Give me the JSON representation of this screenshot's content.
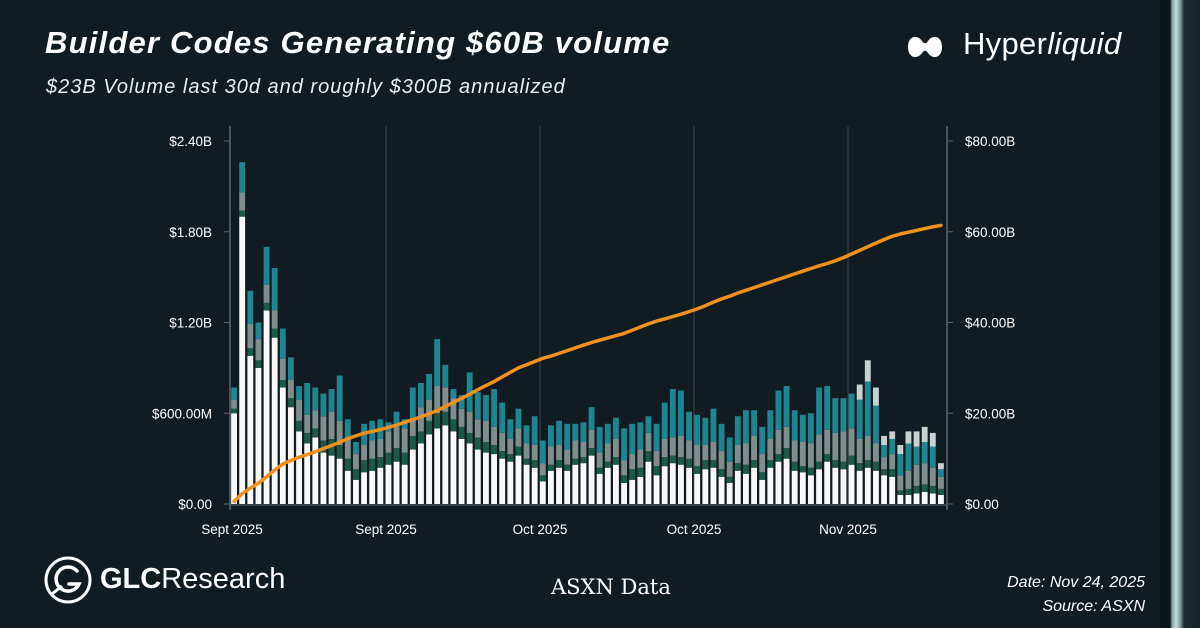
{
  "header": {
    "title": "Builder Codes Generating $60B volume",
    "subtitle": "$23B Volume last 30d and roughly $300B annualized"
  },
  "brand": {
    "hyperliquid_prefix": "Hyper",
    "hyperliquid_suffix": "liquid",
    "glc_bold": "GLC",
    "glc_rest": "Research"
  },
  "footer": {
    "center_source": "ASXN Data",
    "date": "Date: Nov 24, 2025",
    "source": "Source: ASXN"
  },
  "chart_data": {
    "type": "bar",
    "stacked": true,
    "x_tick_labels": [
      "Sept 2025",
      "Sept 2025",
      "Oct 2025",
      "Oct 2025",
      "Nov 2025"
    ],
    "y_left": {
      "ticks": [
        "$0.00",
        "$600.00M",
        "$1.20B",
        "$1.80B",
        "$2.40B"
      ],
      "ylim": [
        0,
        2.4
      ],
      "unit": "B"
    },
    "y_right": {
      "ticks": [
        "$0.00",
        "$20.00B",
        "$40.00B",
        "$60.00B",
        "$80.00B"
      ],
      "ylim": [
        0,
        80
      ],
      "unit": "B"
    },
    "grid": "vertical",
    "colors": {
      "white": "#f8f8f8",
      "darkgreen": "#1b5a47",
      "gray": "#7d8e8c",
      "teal": "#1f8591",
      "lightgray": "#c9d0d0",
      "line": "#f2901e",
      "axis": "#5b666a"
    },
    "series": [
      {
        "name": "white",
        "values": [
          0.6,
          1.9,
          0.98,
          0.9,
          1.28,
          1.1,
          0.77,
          0.64,
          0.48,
          0.4,
          0.44,
          0.34,
          0.32,
          0.3,
          0.22,
          0.16,
          0.21,
          0.22,
          0.24,
          0.26,
          0.28,
          0.26,
          0.36,
          0.4,
          0.46,
          0.5,
          0.52,
          0.48,
          0.43,
          0.4,
          0.36,
          0.34,
          0.33,
          0.3,
          0.28,
          0.32,
          0.26,
          0.24,
          0.15,
          0.22,
          0.24,
          0.22,
          0.26,
          0.27,
          0.32,
          0.2,
          0.24,
          0.26,
          0.14,
          0.16,
          0.18,
          0.28,
          0.19,
          0.25,
          0.27,
          0.26,
          0.24,
          0.2,
          0.23,
          0.24,
          0.18,
          0.14,
          0.22,
          0.2,
          0.24,
          0.16,
          0.24,
          0.28,
          0.3,
          0.22,
          0.21,
          0.19,
          0.23,
          0.28,
          0.24,
          0.23,
          0.26,
          0.22,
          0.24,
          0.22,
          0.19,
          0.18,
          0.06,
          0.06,
          0.07,
          0.08,
          0.07,
          0.06
        ]
      },
      {
        "name": "darkgreen",
        "values": [
          0.03,
          0.04,
          0.05,
          0.05,
          0.05,
          0.06,
          0.05,
          0.06,
          0.07,
          0.07,
          0.06,
          0.08,
          0.11,
          0.09,
          0.08,
          0.07,
          0.08,
          0.08,
          0.07,
          0.08,
          0.09,
          0.08,
          0.09,
          0.08,
          0.09,
          0.1,
          0.09,
          0.08,
          0.08,
          0.07,
          0.08,
          0.07,
          0.06,
          0.05,
          0.05,
          0.06,
          0.04,
          0.05,
          0.04,
          0.04,
          0.05,
          0.04,
          0.04,
          0.04,
          0.05,
          0.04,
          0.04,
          0.05,
          0.05,
          0.07,
          0.06,
          0.07,
          0.06,
          0.06,
          0.05,
          0.05,
          0.06,
          0.05,
          0.06,
          0.05,
          0.05,
          0.04,
          0.05,
          0.06,
          0.05,
          0.05,
          0.05,
          0.05,
          0.07,
          0.06,
          0.04,
          0.05,
          0.05,
          0.05,
          0.05,
          0.05,
          0.06,
          0.05,
          0.05,
          0.06,
          0.04,
          0.05,
          0.03,
          0.04,
          0.05,
          0.05,
          0.05,
          0.04
        ]
      },
      {
        "name": "gray",
        "values": [
          0.06,
          0.12,
          0.16,
          0.14,
          0.12,
          0.12,
          0.14,
          0.12,
          0.14,
          0.12,
          0.12,
          0.16,
          0.18,
          0.16,
          0.14,
          0.1,
          0.1,
          0.12,
          0.12,
          0.14,
          0.14,
          0.16,
          0.12,
          0.16,
          0.14,
          0.18,
          0.16,
          0.14,
          0.12,
          0.14,
          0.12,
          0.14,
          0.12,
          0.12,
          0.1,
          0.12,
          0.1,
          0.1,
          0.08,
          0.12,
          0.1,
          0.1,
          0.12,
          0.1,
          0.12,
          0.1,
          0.12,
          0.12,
          0.1,
          0.1,
          0.12,
          0.12,
          0.1,
          0.12,
          0.12,
          0.14,
          0.12,
          0.14,
          0.1,
          0.12,
          0.12,
          0.1,
          0.12,
          0.14,
          0.16,
          0.12,
          0.14,
          0.16,
          0.14,
          0.14,
          0.16,
          0.16,
          0.18,
          0.16,
          0.18,
          0.2,
          0.18,
          0.16,
          0.16,
          0.12,
          0.08,
          0.1,
          0.1,
          0.12,
          0.14,
          0.14,
          0.12,
          0.08
        ]
      },
      {
        "name": "teal",
        "values": [
          0.08,
          0.2,
          0.22,
          0.11,
          0.25,
          0.28,
          0.2,
          0.15,
          0.09,
          0.21,
          0.15,
          0.15,
          0.15,
          0.3,
          0.12,
          0.08,
          0.14,
          0.13,
          0.13,
          0.06,
          0.1,
          0.06,
          0.2,
          0.16,
          0.17,
          0.31,
          0.15,
          0.06,
          0.09,
          0.26,
          0.18,
          0.17,
          0.25,
          0.2,
          0.13,
          0.13,
          0.12,
          0.19,
          0.15,
          0.14,
          0.16,
          0.17,
          0.11,
          0.13,
          0.15,
          0.17,
          0.13,
          0.14,
          0.21,
          0.2,
          0.18,
          0.11,
          0.18,
          0.24,
          0.32,
          0.3,
          0.19,
          0.2,
          0.18,
          0.22,
          0.18,
          0.16,
          0.19,
          0.22,
          0.17,
          0.18,
          0.19,
          0.26,
          0.27,
          0.2,
          0.18,
          0.2,
          0.31,
          0.29,
          0.23,
          0.22,
          0.23,
          0.26,
          0.36,
          0.25,
          0.08,
          0.1,
          0.14,
          0.18,
          0.12,
          0.14,
          0.14,
          0.05
        ]
      },
      {
        "name": "lightgray",
        "values": [
          0,
          0,
          0,
          0,
          0,
          0,
          0,
          0,
          0,
          0,
          0,
          0,
          0,
          0,
          0,
          0,
          0,
          0,
          0,
          0,
          0,
          0,
          0,
          0,
          0,
          0,
          0,
          0,
          0,
          0,
          0,
          0,
          0,
          0,
          0,
          0,
          0,
          0,
          0,
          0,
          0,
          0,
          0,
          0,
          0,
          0,
          0,
          0,
          0,
          0,
          0,
          0,
          0,
          0,
          0,
          0,
          0,
          0,
          0,
          0,
          0,
          0,
          0,
          0,
          0,
          0,
          0,
          0,
          0,
          0,
          0,
          0,
          0,
          0,
          0,
          0,
          0,
          0.1,
          0.14,
          0.12,
          0.06,
          0.05,
          0.06,
          0.08,
          0.1,
          0.1,
          0.09,
          0.04
        ]
      }
    ],
    "cumulative_line_B": [
      0.6,
      2.3,
      3.5,
      4.6,
      6.0,
      7.5,
      8.8,
      9.6,
      10.3,
      10.9,
      11.5,
      12.2,
      12.9,
      13.6,
      14.4,
      15.0,
      15.6,
      16.0,
      16.4,
      16.9,
      17.4,
      18.0,
      18.6,
      19.2,
      19.9,
      20.6,
      21.5,
      22.4,
      23.3,
      24.2,
      25.2,
      26.1,
      27.0,
      28.0,
      29.0,
      30.0,
      30.7,
      31.4,
      32.1,
      32.6,
      33.2,
      33.8,
      34.4,
      35.0,
      35.6,
      36.1,
      36.6,
      37.1,
      37.6,
      38.3,
      39.0,
      39.7,
      40.3,
      40.8,
      41.3,
      41.8,
      42.4,
      43.0,
      43.7,
      44.5,
      45.2,
      45.8,
      46.5,
      47.1,
      47.7,
      48.3,
      48.9,
      49.5,
      50.1,
      50.7,
      51.3,
      51.9,
      52.5,
      53.0,
      53.6,
      54.3,
      55.1,
      55.9,
      56.7,
      57.5,
      58.3,
      59.0,
      59.5,
      59.9,
      60.3,
      60.7,
      61.1,
      61.4
    ]
  }
}
